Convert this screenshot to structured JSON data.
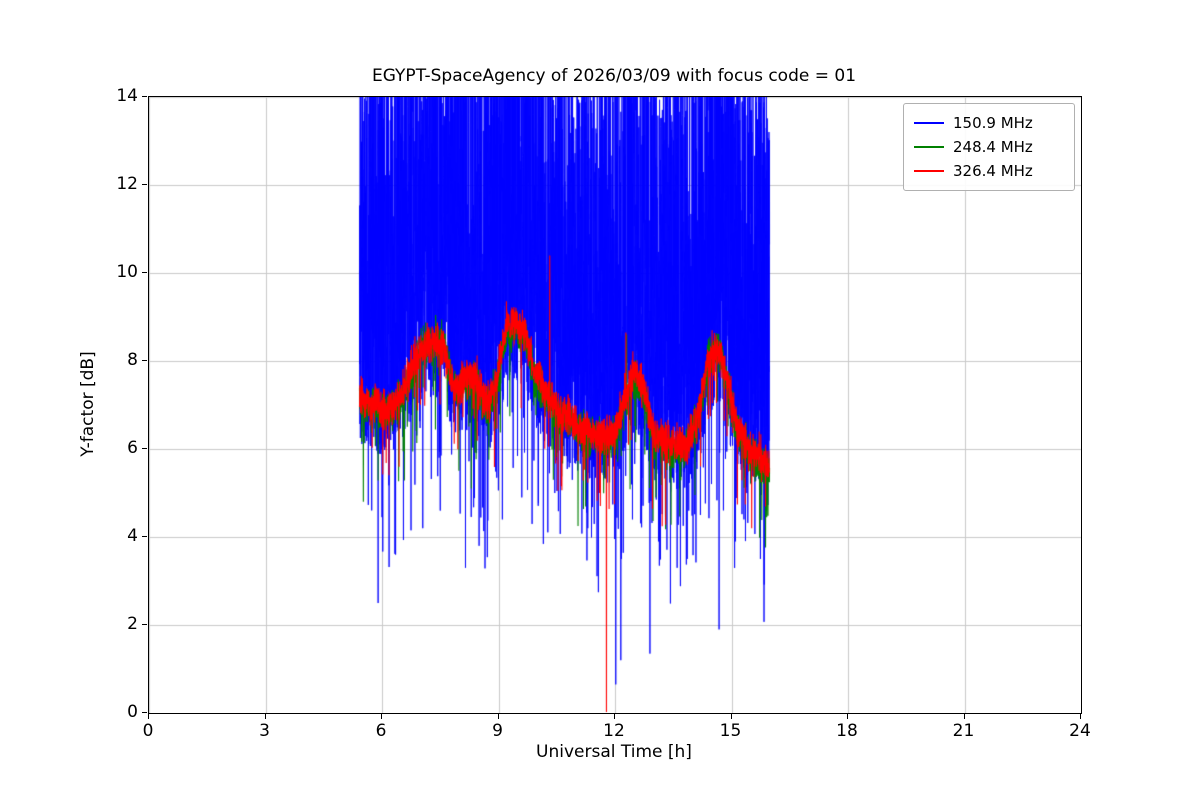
{
  "chart_data": {
    "type": "line",
    "title": "EGYPT-SpaceAgency of 2026/03/09 with focus code = 01",
    "xlabel": "Universal Time [h]",
    "ylabel": "Y-factor [dB]",
    "xlim": [
      0,
      24
    ],
    "ylim": [
      0,
      14
    ],
    "xticks": [
      0,
      3,
      6,
      9,
      12,
      15,
      18,
      21,
      24
    ],
    "yticks": [
      0,
      2,
      4,
      6,
      8,
      10,
      12,
      14
    ],
    "grid": true,
    "grid_color": "#c9c9c9",
    "legend_position": "upper right",
    "time_range": [
      5.42,
      15.98
    ],
    "series": [
      {
        "name": "150.9 MHz",
        "color": "#0000ff",
        "style": "dense-noise",
        "description": "Very noisy signal filling from ~6 dB up beyond top of axis (clipped at 14 dB) between 5.4 h and 16.0 h, with sporadic deep downward spikes",
        "baseline": [
          [
            5.42,
            6.6
          ],
          [
            5.8,
            6.5
          ],
          [
            6.1,
            6.4
          ],
          [
            6.4,
            6.5
          ],
          [
            6.7,
            7.1
          ],
          [
            7.0,
            7.7
          ],
          [
            7.3,
            7.8
          ],
          [
            7.6,
            7.7
          ],
          [
            7.85,
            6.9
          ],
          [
            8.1,
            7.0
          ],
          [
            8.4,
            7.1
          ],
          [
            8.65,
            6.4
          ],
          [
            8.9,
            6.8
          ],
          [
            9.2,
            8.0
          ],
          [
            9.45,
            8.1
          ],
          [
            9.7,
            7.9
          ],
          [
            9.95,
            7.1
          ],
          [
            10.2,
            6.7
          ],
          [
            10.5,
            6.3
          ],
          [
            10.8,
            6.1
          ],
          [
            11.2,
            5.9
          ],
          [
            11.6,
            5.8
          ],
          [
            12.0,
            5.8
          ],
          [
            12.25,
            6.5
          ],
          [
            12.5,
            7.0
          ],
          [
            12.75,
            6.6
          ],
          [
            13.0,
            5.9
          ],
          [
            13.4,
            5.6
          ],
          [
            13.8,
            5.6
          ],
          [
            14.1,
            6.0
          ],
          [
            14.4,
            7.3
          ],
          [
            14.65,
            7.6
          ],
          [
            14.9,
            6.9
          ],
          [
            15.15,
            6.0
          ],
          [
            15.45,
            5.5
          ],
          [
            15.75,
            5.3
          ],
          [
            15.98,
            5.2
          ]
        ],
        "noise": {
          "p_high": 0.52,
          "high_min": 2.0,
          "high_max": 9.7,
          "low_min": -0.6,
          "low_span": 3.0,
          "p_deep": 0.03,
          "deep_min": 1.0,
          "deep_span": 2.2,
          "step": 0.0025,
          "seed": 1337
        },
        "spikes": [
          [
            5.9,
            2.5
          ],
          [
            6.35,
            3.6
          ],
          [
            7.05,
            4.2
          ],
          [
            7.5,
            4.6
          ],
          [
            8.15,
            3.3
          ],
          [
            8.5,
            3.8
          ],
          [
            9.1,
            4.4
          ],
          [
            9.6,
            4.9
          ],
          [
            10.45,
            5.0
          ],
          [
            10.9,
            5.3
          ],
          [
            11.3,
            4.2
          ],
          [
            11.55,
            5.0
          ],
          [
            12.02,
            0.65
          ],
          [
            12.15,
            1.2
          ],
          [
            12.45,
            4.4
          ],
          [
            12.9,
            1.35
          ],
          [
            13.12,
            3.9
          ],
          [
            13.3,
            4.3
          ],
          [
            13.6,
            3.3
          ],
          [
            13.9,
            4.6
          ],
          [
            14.2,
            4.5
          ],
          [
            14.68,
            1.9
          ],
          [
            15.1,
            3.9
          ],
          [
            15.32,
            4.4
          ]
        ]
      },
      {
        "name": "248.4 MHz",
        "color": "#008000",
        "style": "noisy-line",
        "description": "Noisy line oscillating roughly 5.5-9 dB between 5.4 h and 16.0 h",
        "baseline": [
          [
            5.45,
            7.1
          ],
          [
            5.8,
            6.9
          ],
          [
            6.1,
            6.8
          ],
          [
            6.4,
            7.0
          ],
          [
            6.7,
            7.6
          ],
          [
            7.0,
            8.3
          ],
          [
            7.3,
            8.5
          ],
          [
            7.6,
            8.4
          ],
          [
            7.85,
            7.3
          ],
          [
            8.1,
            7.5
          ],
          [
            8.4,
            7.6
          ],
          [
            8.65,
            6.9
          ],
          [
            8.9,
            7.3
          ],
          [
            9.2,
            8.6
          ],
          [
            9.45,
            8.8
          ],
          [
            9.7,
            8.5
          ],
          [
            9.95,
            7.6
          ],
          [
            10.2,
            7.2
          ],
          [
            10.5,
            6.8
          ],
          [
            10.8,
            6.6
          ],
          [
            11.2,
            6.4
          ],
          [
            11.6,
            6.2
          ],
          [
            12.0,
            6.2
          ],
          [
            12.25,
            7.0
          ],
          [
            12.5,
            7.6
          ],
          [
            12.75,
            7.2
          ],
          [
            13.0,
            6.3
          ],
          [
            13.4,
            6.0
          ],
          [
            13.8,
            6.0
          ],
          [
            14.1,
            6.5
          ],
          [
            14.4,
            8.0
          ],
          [
            14.65,
            8.4
          ],
          [
            14.9,
            7.4
          ],
          [
            15.15,
            6.4
          ],
          [
            15.45,
            5.9
          ],
          [
            15.75,
            5.6
          ],
          [
            15.98,
            5.4
          ]
        ],
        "noise": {
          "sigma": 0.42,
          "p_dip": 0.03,
          "dip_min": 0.4,
          "dip_span": 1.5,
          "step": 0.004,
          "seed": 2024
        },
        "spikes": [
          [
            5.52,
            4.8
          ],
          [
            8.3,
            5.1
          ],
          [
            12.3,
            8.6
          ],
          [
            13.05,
            4.9
          ],
          [
            15.5,
            5.2
          ]
        ]
      },
      {
        "name": "326.4 MHz",
        "color": "#ff0000",
        "style": "noisy-line",
        "description": "Noisy line similar to 248.4 MHz; spike up to 10.4 dB near 10.3 h and drop to 0 dB near 11.8 h",
        "baseline": [
          [
            5.45,
            7.2
          ],
          [
            5.8,
            7.0
          ],
          [
            6.1,
            6.9
          ],
          [
            6.4,
            7.1
          ],
          [
            6.7,
            7.7
          ],
          [
            7.0,
            8.3
          ],
          [
            7.3,
            8.4
          ],
          [
            7.6,
            8.3
          ],
          [
            7.85,
            7.4
          ],
          [
            8.1,
            7.6
          ],
          [
            8.4,
            7.7
          ],
          [
            8.65,
            7.0
          ],
          [
            8.9,
            7.4
          ],
          [
            9.2,
            8.8
          ],
          [
            9.45,
            8.9
          ],
          [
            9.7,
            8.6
          ],
          [
            9.95,
            7.7
          ],
          [
            10.2,
            7.3
          ],
          [
            10.5,
            6.9
          ],
          [
            10.8,
            6.7
          ],
          [
            11.2,
            6.5
          ],
          [
            11.6,
            6.3
          ],
          [
            12.0,
            6.3
          ],
          [
            12.25,
            7.2
          ],
          [
            12.5,
            7.8
          ],
          [
            12.75,
            7.3
          ],
          [
            13.0,
            6.4
          ],
          [
            13.4,
            6.1
          ],
          [
            13.8,
            6.1
          ],
          [
            14.1,
            6.6
          ],
          [
            14.4,
            8.1
          ],
          [
            14.65,
            8.3
          ],
          [
            14.9,
            7.5
          ],
          [
            15.15,
            6.5
          ],
          [
            15.45,
            6.0
          ],
          [
            15.75,
            5.8
          ],
          [
            15.98,
            5.6
          ]
        ],
        "noise": {
          "sigma": 0.42,
          "p_dip": 0.03,
          "dip_min": 0.4,
          "dip_span": 1.5,
          "step": 0.004,
          "seed": 777
        },
        "spikes": [
          [
            10.32,
            10.4
          ],
          [
            11.6,
            5.0
          ],
          [
            11.78,
            0.02
          ],
          [
            12.28,
            8.65
          ],
          [
            14.5,
            8.7
          ]
        ]
      }
    ]
  }
}
